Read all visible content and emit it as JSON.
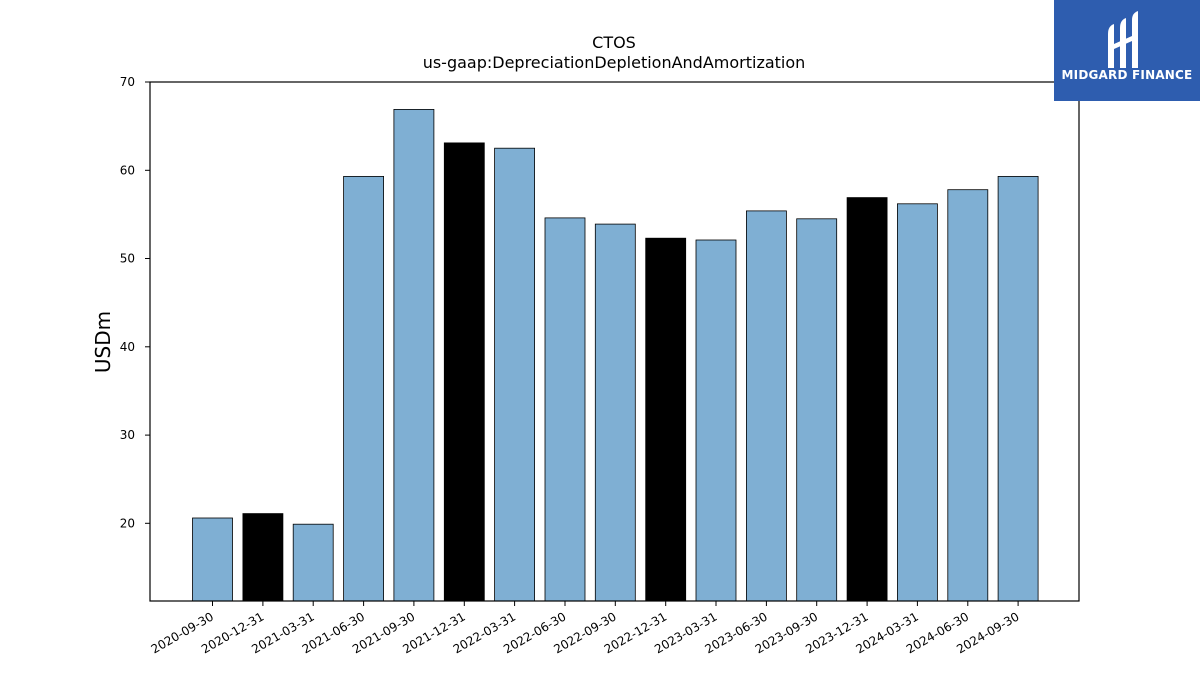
{
  "chart_data": {
    "type": "bar",
    "title": "CTOS",
    "subtitle": "us-gaap:DepreciationDepletionAndAmortization",
    "xlabel": "",
    "ylabel": "USDm",
    "ylim": [
      11.2,
      70
    ],
    "yticks": [
      20,
      30,
      40,
      50,
      60,
      70
    ],
    "grid": false,
    "categories": [
      "2020-09-30",
      "2020-12-31",
      "2021-03-31",
      "2021-06-30",
      "2021-09-30",
      "2021-12-31",
      "2022-03-31",
      "2022-06-30",
      "2022-09-30",
      "2022-12-31",
      "2023-03-31",
      "2023-06-30",
      "2023-09-30",
      "2023-12-31",
      "2024-03-31",
      "2024-06-30",
      "2024-09-30"
    ],
    "values": [
      20.6,
      21.1,
      19.9,
      59.3,
      66.9,
      63.1,
      62.5,
      54.6,
      53.9,
      52.3,
      52.1,
      55.4,
      54.5,
      56.9,
      56.2,
      57.8,
      59.3
    ],
    "bar_colors": [
      "#7fafd3",
      "#000000",
      "#7fafd3",
      "#7fafd3",
      "#7fafd3",
      "#000000",
      "#7fafd3",
      "#7fafd3",
      "#7fafd3",
      "#000000",
      "#7fafd3",
      "#7fafd3",
      "#7fafd3",
      "#000000",
      "#7fafd3",
      "#7fafd3",
      "#7fafd3"
    ]
  },
  "logo": {
    "text": "MIDGARD FINANCE",
    "background": "#2e5daf"
  }
}
